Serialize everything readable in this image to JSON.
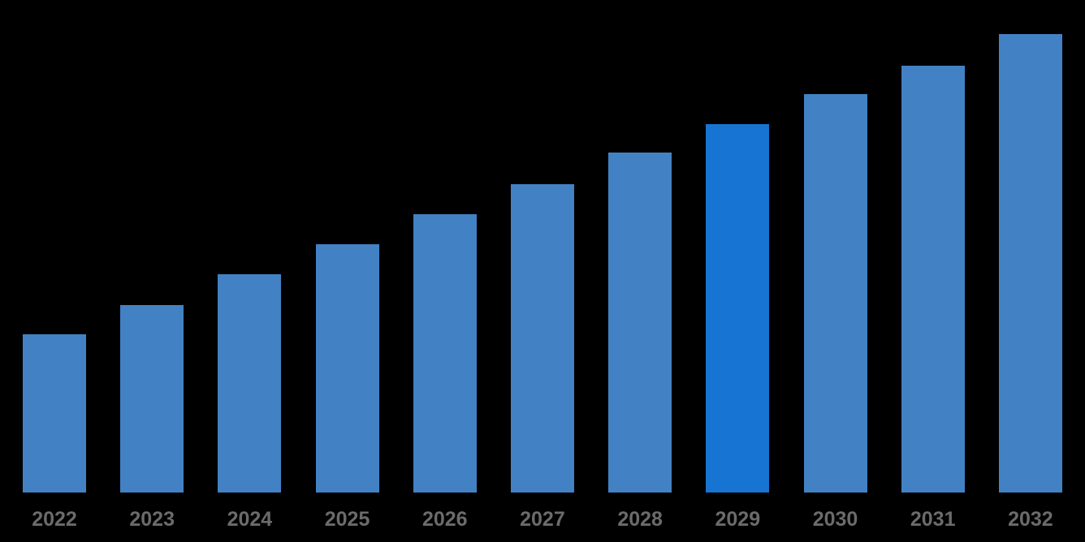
{
  "page": {
    "background_color": "#000000"
  },
  "chart_data": {
    "type": "bar",
    "title": "",
    "xlabel": "",
    "ylabel": "",
    "categories": [
      "2022",
      "2023",
      "2024",
      "2025",
      "2026",
      "2027",
      "2028",
      "2029",
      "2030",
      "2031",
      "2032"
    ],
    "values": [
      34.5,
      40.9,
      47.6,
      54.2,
      60.7,
      67.3,
      74.2,
      80.4,
      86.9,
      93.1,
      100.0
    ],
    "values_note": "Relative index estimated from bar heights (2032 = 100); chart shows no numeric y-axis labels or data labels",
    "ylim": [
      0,
      100
    ],
    "grid": false,
    "legend": false,
    "axis_lines": false,
    "highlight_category": "2029",
    "colors": {
      "bar": "#4282C4",
      "highlight_bar": "#1774D2",
      "tick_label": "#6B6B6B",
      "background": "#000000"
    }
  }
}
